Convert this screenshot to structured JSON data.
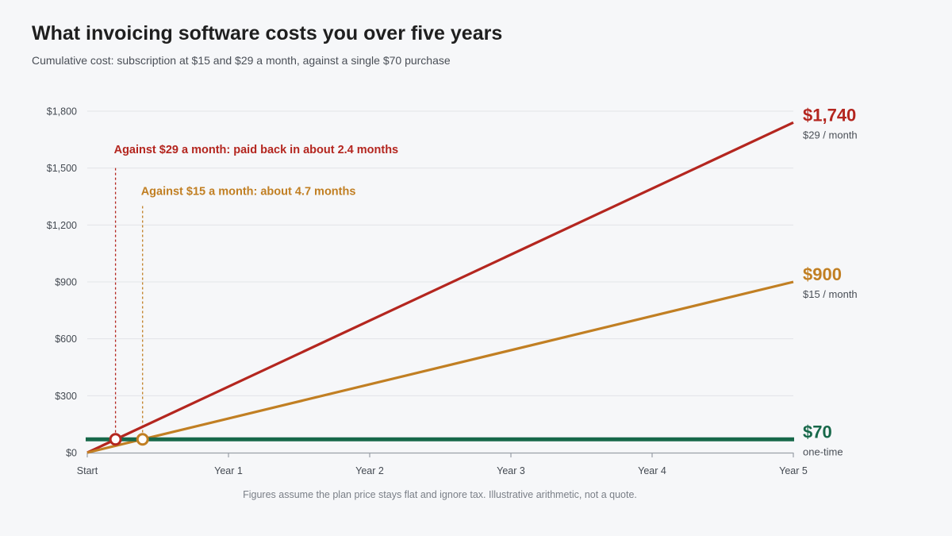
{
  "header": {
    "title": "What invoicing software costs you over five years",
    "subtitle": "Cumulative cost: subscription at $15 and $29 a month, against a single $70 purchase"
  },
  "footnote": "Figures assume the plan price stays flat and ignore tax. Illustrative arithmetic, not a quote.",
  "chart_data": {
    "type": "line",
    "x_unit": "months",
    "xlim": [
      0,
      60
    ],
    "ylim": [
      0,
      1800
    ],
    "x_ticks": [
      {
        "value": 0,
        "label": "Start"
      },
      {
        "value": 12,
        "label": "Year 1"
      },
      {
        "value": 24,
        "label": "Year 2"
      },
      {
        "value": 36,
        "label": "Year 3"
      },
      {
        "value": 48,
        "label": "Year 4"
      },
      {
        "value": 60,
        "label": "Year 5"
      }
    ],
    "y_ticks": [
      {
        "value": 0,
        "label": "$0"
      },
      {
        "value": 300,
        "label": "$300"
      },
      {
        "value": 600,
        "label": "$600"
      },
      {
        "value": 900,
        "label": "$900"
      },
      {
        "value": 1200,
        "label": "$1,200"
      },
      {
        "value": 1500,
        "label": "$1,500"
      },
      {
        "value": 1800,
        "label": "$1,800"
      }
    ],
    "grid": true,
    "legend": "direct labels at right end",
    "series": [
      {
        "id": "plan29",
        "color": "#b4261f",
        "x": [
          0,
          60
        ],
        "y": [
          0,
          1740
        ],
        "end_label": "$1,740",
        "end_sublabel": "$29 / month"
      },
      {
        "id": "plan15",
        "color": "#c17f23",
        "x": [
          0,
          60
        ],
        "y": [
          0,
          900
        ],
        "end_label": "$900",
        "end_sublabel": "$15 / month"
      },
      {
        "id": "onetime",
        "color": "#17684a",
        "x": [
          0,
          60
        ],
        "y": [
          70,
          70
        ],
        "end_label": "$70",
        "end_sublabel": "one-time"
      }
    ],
    "annotations": [
      {
        "id": "payback29",
        "text": "Against $29 a month: paid back in about 2.4 months",
        "color": "#b4261f",
        "x": 2.4,
        "y": 70,
        "line_top_y": 1500,
        "text_y": 1600
      },
      {
        "id": "payback15",
        "text": "Against $15 a month: about 4.7 months",
        "color": "#c17f23",
        "x": 4.7,
        "y": 70,
        "line_top_y": 1300,
        "text_y": 1380
      }
    ]
  }
}
